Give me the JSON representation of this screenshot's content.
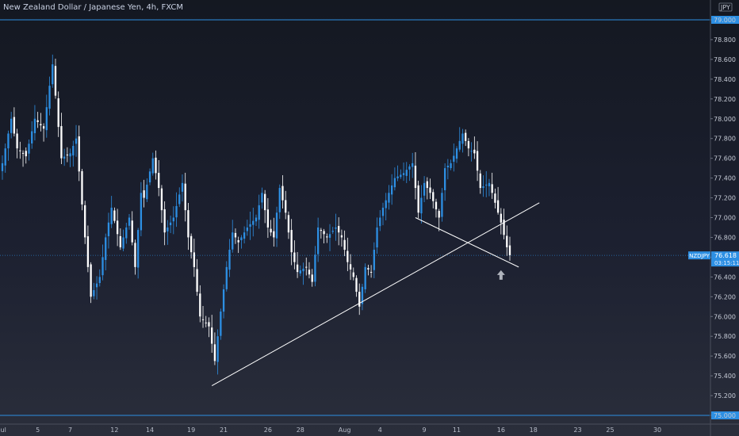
{
  "header": {
    "title": "New Zealand Dollar / Japanese Yen, 4h, FXCM",
    "currency": "JPY"
  },
  "price_tag": {
    "symbol": "NZDJPY",
    "price": "76.618",
    "countdown": "03:15:11"
  },
  "colors": {
    "up": "#2d8fe3",
    "down": "#ffffff",
    "line": "#ffffff",
    "level": "#2d8fe3",
    "tag": "#2d8fe3"
  },
  "chart_data": {
    "type": "candlestick",
    "title": "New Zealand Dollar / Japanese Yen, 4h, FXCM",
    "ylim": [
      75.0,
      79.0
    ],
    "yticks": [
      79.0,
      78.8,
      78.6,
      78.4,
      78.2,
      78.0,
      77.8,
      77.6,
      77.4,
      77.2,
      77.0,
      76.8,
      76.6,
      76.4,
      76.2,
      76.0,
      75.8,
      75.6,
      75.4,
      75.2,
      75.0
    ],
    "ytick_labels": [
      "79.000",
      "78.800",
      "78.600",
      "78.400",
      "78.200",
      "78.000",
      "77.800",
      "77.600",
      "77.400",
      "77.200",
      "77.000",
      "76.800",
      "76.600",
      "76.400",
      "76.200",
      "76.000",
      "75.800",
      "75.600",
      "75.400",
      "75.200",
      "75.000"
    ],
    "xticks": [
      {
        "label": "Jul",
        "bar": 0
      },
      {
        "label": "5",
        "bar": 12
      },
      {
        "label": "7",
        "bar": 23
      },
      {
        "label": "12",
        "bar": 38
      },
      {
        "label": "14",
        "bar": 50
      },
      {
        "label": "19",
        "bar": 64
      },
      {
        "label": "21",
        "bar": 75
      },
      {
        "label": "26",
        "bar": 90
      },
      {
        "label": "28",
        "bar": 101
      },
      {
        "label": "Aug",
        "bar": 116
      },
      {
        "label": "4",
        "bar": 128
      },
      {
        "label": "9",
        "bar": 143
      },
      {
        "label": "11",
        "bar": 154
      },
      {
        "label": "16",
        "bar": 169
      },
      {
        "label": "18",
        "bar": 180
      },
      {
        "label": "23",
        "bar": 195
      },
      {
        "label": "25",
        "bar": 206
      },
      {
        "label": "30",
        "bar": 222
      }
    ],
    "total_slots": 236,
    "key_points": [
      [
        0,
        77.55
      ],
      [
        3,
        78.0
      ],
      [
        5,
        77.7
      ],
      [
        8,
        77.62
      ],
      [
        11,
        78.0
      ],
      [
        14,
        77.9
      ],
      [
        17,
        78.55
      ],
      [
        20,
        77.6
      ],
      [
        23,
        77.65
      ],
      [
        25,
        77.8
      ],
      [
        28,
        76.8
      ],
      [
        30,
        76.2
      ],
      [
        33,
        76.4
      ],
      [
        35,
        76.8
      ],
      [
        37,
        77.1
      ],
      [
        40,
        76.7
      ],
      [
        43,
        77.0
      ],
      [
        45,
        76.5
      ],
      [
        47,
        77.25
      ],
      [
        48,
        77.2
      ],
      [
        51,
        77.6
      ],
      [
        53,
        77.3
      ],
      [
        55,
        76.85
      ],
      [
        58,
        77.0
      ],
      [
        61,
        77.35
      ],
      [
        63,
        76.8
      ],
      [
        65,
        76.5
      ],
      [
        67,
        76.0
      ],
      [
        70,
        75.9
      ],
      [
        72,
        75.55
      ],
      [
        74,
        76.05
      ],
      [
        76,
        76.5
      ],
      [
        78,
        76.85
      ],
      [
        80,
        76.75
      ],
      [
        83,
        76.9
      ],
      [
        86,
        77.0
      ],
      [
        88,
        77.25
      ],
      [
        90,
        76.9
      ],
      [
        92,
        76.8
      ],
      [
        94,
        77.3
      ],
      [
        96,
        77.05
      ],
      [
        98,
        76.65
      ],
      [
        100,
        76.45
      ],
      [
        103,
        76.5
      ],
      [
        105,
        76.35
      ],
      [
        107,
        76.9
      ],
      [
        110,
        76.8
      ],
      [
        113,
        76.9
      ],
      [
        115,
        76.8
      ],
      [
        117,
        76.55
      ],
      [
        119,
        76.4
      ],
      [
        121,
        76.1
      ],
      [
        123,
        76.5
      ],
      [
        125,
        76.45
      ],
      [
        127,
        76.9
      ],
      [
        129,
        77.1
      ],
      [
        131,
        77.25
      ],
      [
        133,
        77.4
      ],
      [
        136,
        77.45
      ],
      [
        139,
        77.55
      ],
      [
        141,
        77.05
      ],
      [
        143,
        77.35
      ],
      [
        145,
        77.25
      ],
      [
        148,
        77.0
      ],
      [
        150,
        77.5
      ],
      [
        152,
        77.55
      ],
      [
        154,
        77.7
      ],
      [
        156,
        77.85
      ],
      [
        158,
        77.7
      ],
      [
        160,
        77.65
      ],
      [
        162,
        77.3
      ],
      [
        165,
        77.35
      ],
      [
        167,
        77.15
      ],
      [
        169,
        76.95
      ],
      [
        171,
        76.7
      ],
      [
        172,
        76.62
      ]
    ],
    "trendlines": [
      {
        "x1": 71,
        "y1": 75.3,
        "x2": 182,
        "y2": 77.15
      },
      {
        "x1": 140,
        "y1": 77.0,
        "x2": 175,
        "y2": 76.5
      }
    ],
    "levels": [
      79.0,
      75.0
    ],
    "current_price": 76.618,
    "marker": {
      "type": "up-arrow",
      "bar": 169,
      "y": 76.42
    }
  }
}
